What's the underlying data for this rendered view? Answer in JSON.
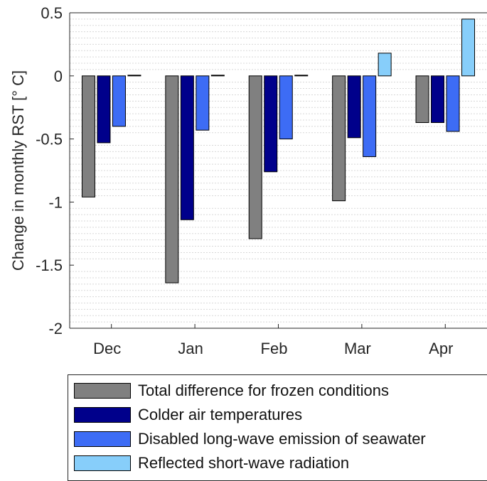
{
  "chart_data": {
    "type": "bar",
    "title": "",
    "xlabel": "",
    "ylabel": "Change in monthly RST [° C]",
    "categories": [
      "Dec",
      "Jan",
      "Feb",
      "Mar",
      "Apr"
    ],
    "ylim": [
      -2,
      0.5
    ],
    "yticks": [
      0.5,
      0,
      -0.5,
      -1,
      -1.5,
      -2
    ],
    "ytick_labels": [
      "0.5",
      "0",
      "-0.5",
      "-1",
      "-1.5",
      "-2"
    ],
    "grid": "horizontal minor dotted",
    "legend_position": "bottom",
    "series": [
      {
        "name": "Total difference for frozen conditions",
        "color": "#808080",
        "values": [
          -0.96,
          -1.64,
          -1.29,
          -0.99,
          -0.37
        ]
      },
      {
        "name": "Colder air temperatures",
        "color": "#00008b",
        "values": [
          -0.53,
          -1.14,
          -0.76,
          -0.49,
          -0.37
        ]
      },
      {
        "name": "Disabled long-wave emission of seawater",
        "color": "#3d6cf5",
        "values": [
          -0.4,
          -0.43,
          -0.5,
          -0.64,
          -0.44
        ]
      },
      {
        "name": "Reflected short-wave radiation",
        "color": "#87cefa",
        "values": [
          0.0,
          0.0,
          0.0,
          0.18,
          0.45
        ]
      }
    ]
  }
}
